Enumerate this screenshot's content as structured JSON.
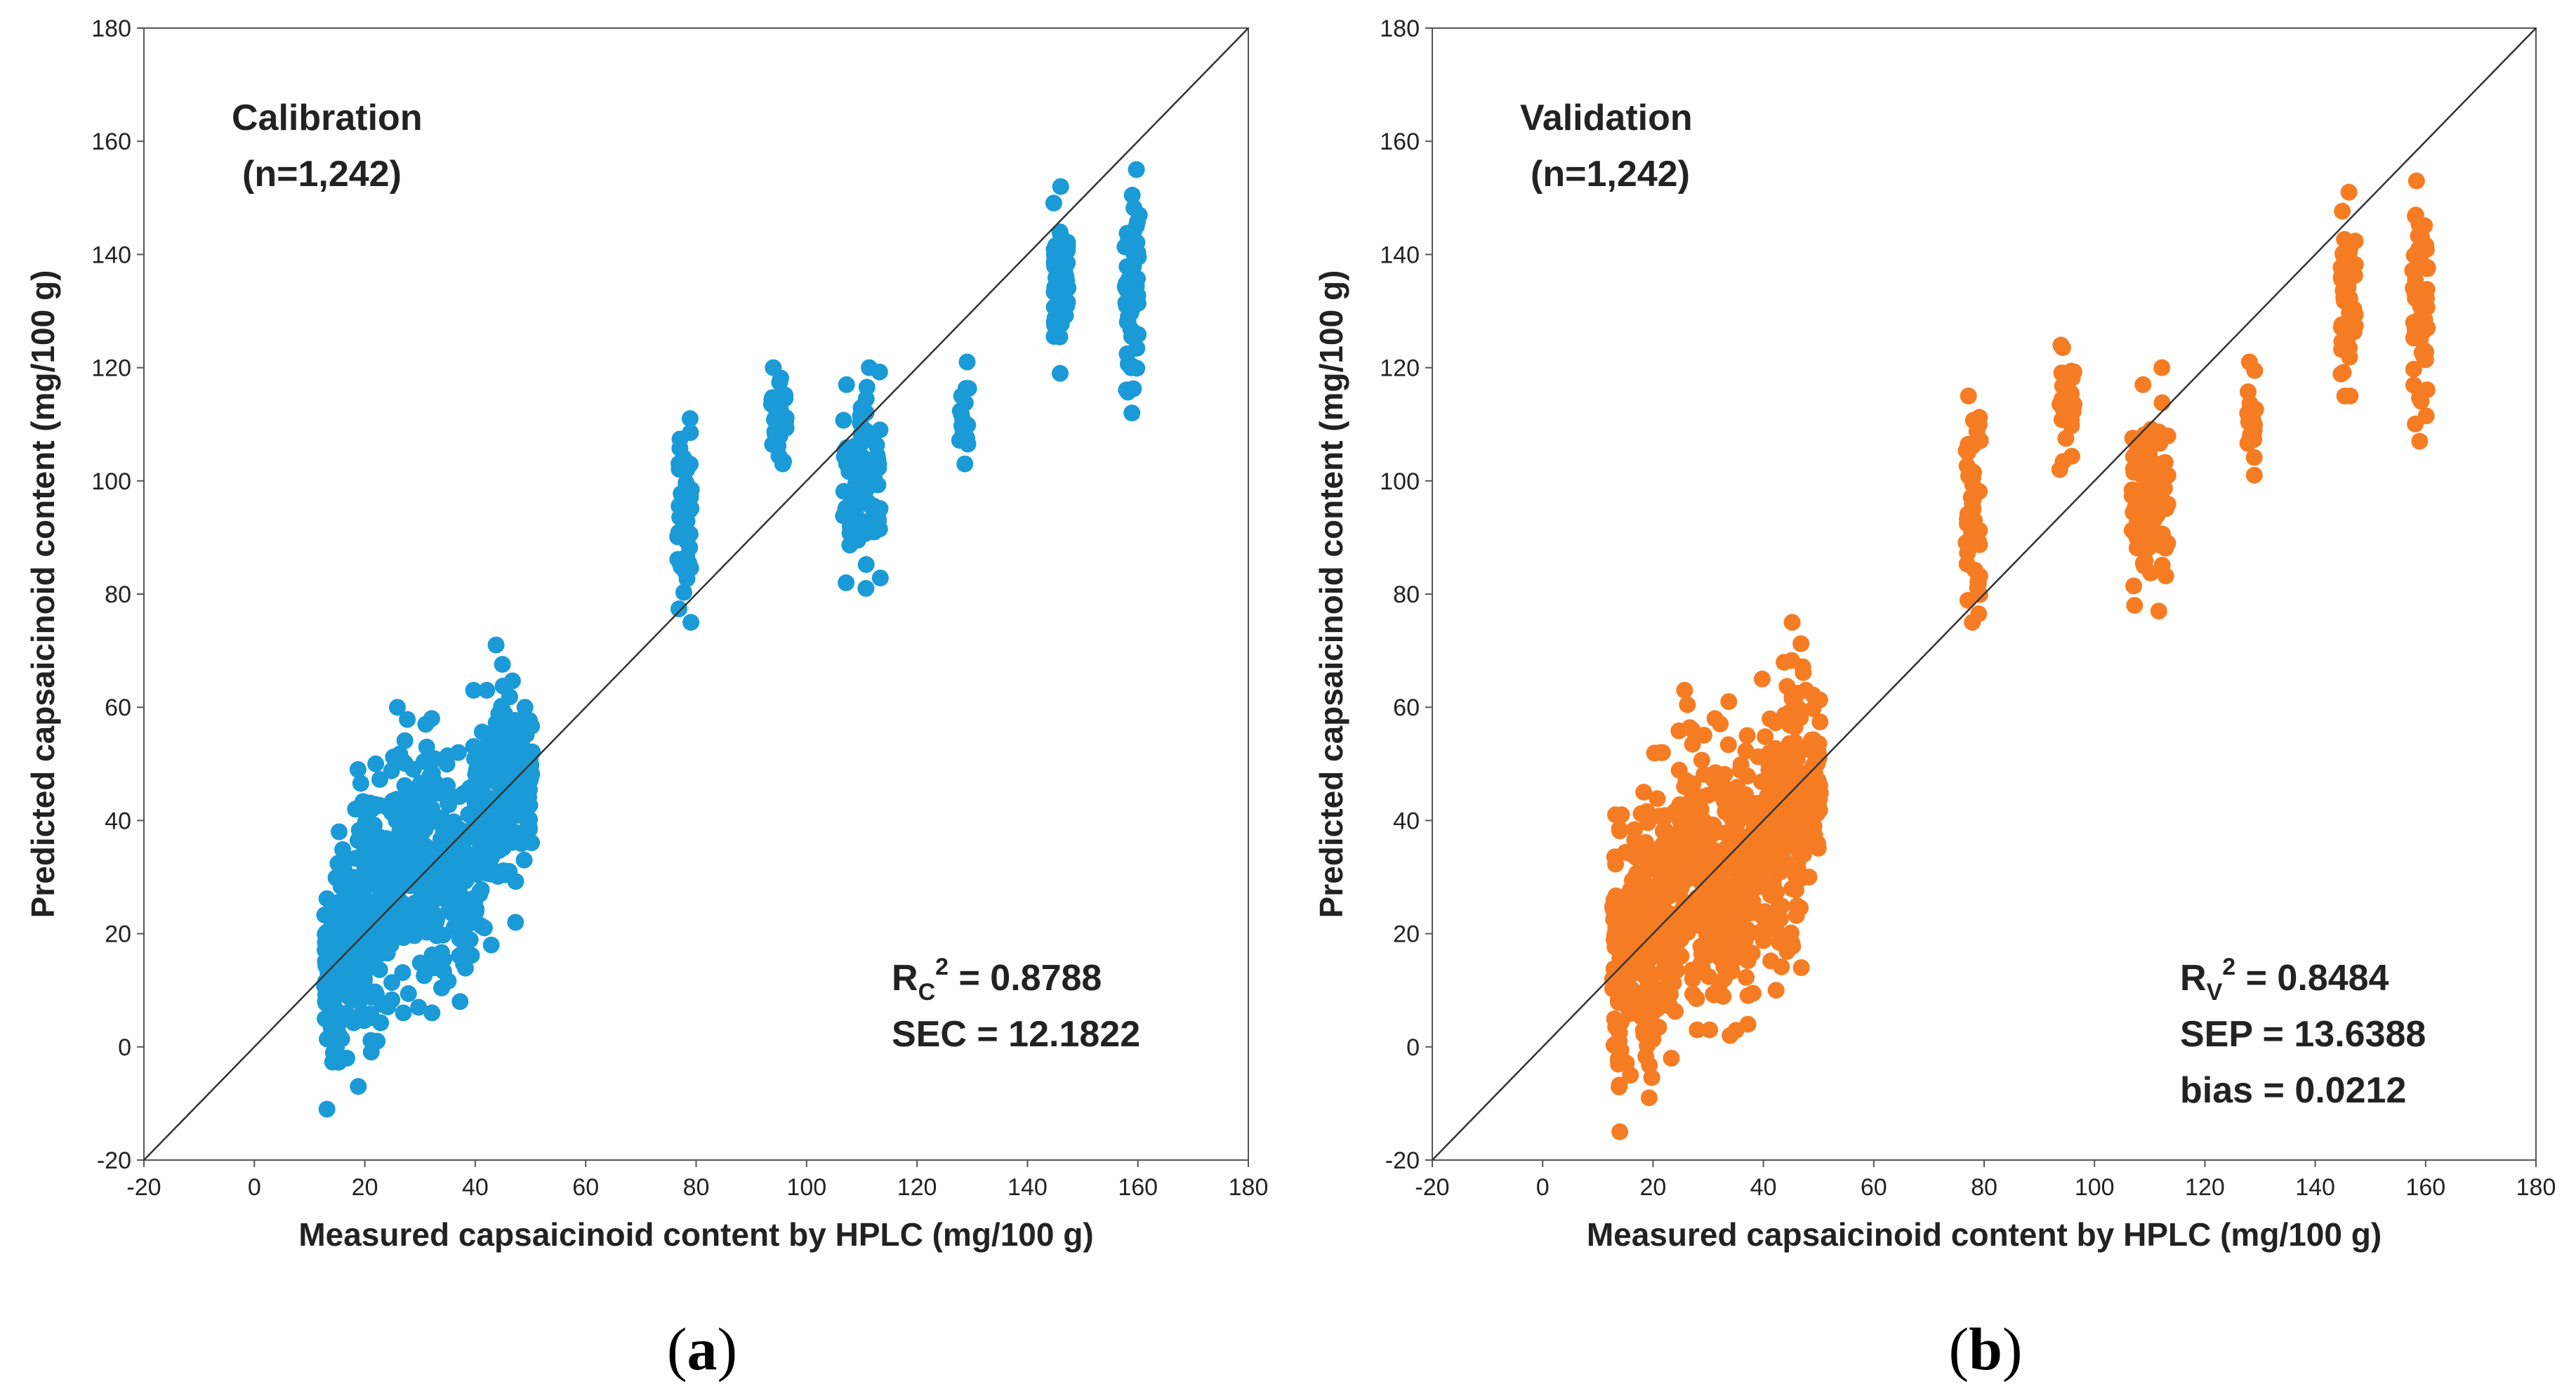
{
  "chart_data": [
    {
      "type": "scatter",
      "panel_label": "a",
      "title": "Calibration",
      "subtitle": "(n=1,242)",
      "xlabel": "Measured capsaicinoid content by HPLC (mg/100 g)",
      "ylabel": "Predicted capsaicinoid content  (mg/100 g)",
      "xlim": [
        -20,
        180
      ],
      "ylim": [
        -20,
        180
      ],
      "xticks": [
        -20,
        0,
        20,
        40,
        60,
        80,
        100,
        120,
        140,
        160,
        180
      ],
      "yticks": [
        -20,
        0,
        20,
        40,
        60,
        80,
        100,
        120,
        140,
        160,
        180
      ],
      "color": "#1a9ad6",
      "reference_line": "1:1",
      "stats": [
        {
          "label": "R",
          "sub": "C",
          "sup": "2",
          "value": " = 0.8788"
        },
        {
          "label": "SEC = 12.1822"
        }
      ],
      "clusters": [
        {
          "xs": [
            13,
            14,
            15
          ],
          "ymin": -11,
          "ymax": 38,
          "n": 75
        },
        {
          "xs": [
            16,
            17,
            18
          ],
          "ymin": -2,
          "ymax": 42,
          "n": 70
        },
        {
          "xs": [
            19,
            20,
            21
          ],
          "ymin": -7,
          "ymax": 49,
          "n": 75
        },
        {
          "xs": [
            22,
            23,
            24
          ],
          "ymin": 1,
          "ymax": 50,
          "n": 70
        },
        {
          "xs": [
            25,
            26,
            27,
            28
          ],
          "ymin": 6,
          "ymax": 60,
          "n": 85
        },
        {
          "xs": [
            29,
            30,
            31
          ],
          "ymin": 7,
          "ymax": 57,
          "n": 70
        },
        {
          "xs": [
            32,
            33,
            34,
            35
          ],
          "ymin": 6,
          "ymax": 58,
          "n": 80
        },
        {
          "xs": [
            36,
            37,
            38,
            39
          ],
          "ymin": 8,
          "ymax": 52,
          "n": 75
        },
        {
          "xs": [
            40,
            41,
            42,
            43
          ],
          "ymin": 18,
          "ymax": 63,
          "n": 85
        },
        {
          "xs": [
            44,
            45,
            46,
            47
          ],
          "ymin": 22,
          "ymax": 71,
          "n": 90
        },
        {
          "xs": [
            48,
            49,
            50
          ],
          "ymin": 33,
          "ymax": 60,
          "n": 60
        },
        {
          "xs": [
            77,
            78,
            79
          ],
          "ymin": 75,
          "ymax": 111,
          "n": 45
        },
        {
          "xs": [
            94,
            95,
            96
          ],
          "ymin": 103,
          "ymax": 120,
          "n": 30
        },
        {
          "xs": [
            107,
            108,
            109
          ],
          "ymin": 82,
          "ymax": 117,
          "n": 45
        },
        {
          "xs": [
            110,
            111,
            112,
            113
          ],
          "ymin": 81,
          "ymax": 120,
          "n": 55
        },
        {
          "xs": [
            128,
            129
          ],
          "ymin": 103,
          "ymax": 121,
          "n": 18
        },
        {
          "xs": [
            145,
            146,
            147
          ],
          "ymin": 119,
          "ymax": 152,
          "n": 50
        },
        {
          "xs": [
            158,
            159,
            160
          ],
          "ymin": 112,
          "ymax": 155,
          "n": 55
        }
      ]
    },
    {
      "type": "scatter",
      "panel_label": "b",
      "title": "Validation",
      "subtitle": "(n=1,242)",
      "xlabel": "Measured capsaicinoid content by HPLC (mg/100 g)",
      "ylabel": "Predicted capsaicinoid content  (mg/100 g)",
      "xlim": [
        -20,
        180
      ],
      "ylim": [
        -20,
        180
      ],
      "xticks": [
        -20,
        0,
        20,
        40,
        60,
        80,
        100,
        120,
        140,
        160,
        180
      ],
      "yticks": [
        -20,
        0,
        20,
        40,
        60,
        80,
        100,
        120,
        140,
        160,
        180
      ],
      "color": "#f57c23",
      "reference_line": "1:1",
      "stats": [
        {
          "label": "R",
          "sub": "V",
          "sup": "2",
          "value": " = 0.8484"
        },
        {
          "label": "SEP = 13.6388"
        },
        {
          "label": "bias = 0.0212"
        }
      ],
      "clusters": [
        {
          "xs": [
            13,
            14,
            15
          ],
          "ymin": -15,
          "ymax": 41,
          "n": 75
        },
        {
          "xs": [
            16,
            17,
            18
          ],
          "ymin": -5,
          "ymax": 45,
          "n": 70
        },
        {
          "xs": [
            19,
            20,
            21
          ],
          "ymin": -9,
          "ymax": 52,
          "n": 75
        },
        {
          "xs": [
            22,
            23,
            24
          ],
          "ymin": -2,
          "ymax": 52,
          "n": 70
        },
        {
          "xs": [
            25,
            26,
            27,
            28
          ],
          "ymin": 3,
          "ymax": 63,
          "n": 85
        },
        {
          "xs": [
            29,
            30,
            31
          ],
          "ymin": 3,
          "ymax": 58,
          "n": 70
        },
        {
          "xs": [
            32,
            33,
            34,
            35
          ],
          "ymin": 2,
          "ymax": 61,
          "n": 80
        },
        {
          "xs": [
            36,
            37,
            38,
            39
          ],
          "ymin": 4,
          "ymax": 55,
          "n": 75
        },
        {
          "xs": [
            40,
            41,
            42,
            43
          ],
          "ymin": 10,
          "ymax": 65,
          "n": 85
        },
        {
          "xs": [
            44,
            45,
            46,
            47
          ],
          "ymin": 14,
          "ymax": 75,
          "n": 90
        },
        {
          "xs": [
            48,
            49,
            50
          ],
          "ymin": 30,
          "ymax": 63,
          "n": 60
        },
        {
          "xs": [
            77,
            78,
            79
          ],
          "ymin": 75,
          "ymax": 115,
          "n": 45
        },
        {
          "xs": [
            94,
            95,
            96
          ],
          "ymin": 102,
          "ymax": 124,
          "n": 30
        },
        {
          "xs": [
            107,
            108,
            109
          ],
          "ymin": 78,
          "ymax": 117,
          "n": 45
        },
        {
          "xs": [
            110,
            111,
            112,
            113
          ],
          "ymin": 77,
          "ymax": 120,
          "n": 55
        },
        {
          "xs": [
            128,
            129
          ],
          "ymin": 101,
          "ymax": 121,
          "n": 18
        },
        {
          "xs": [
            145,
            146,
            147
          ],
          "ymin": 115,
          "ymax": 151,
          "n": 50
        },
        {
          "xs": [
            158,
            159,
            160
          ],
          "ymin": 107,
          "ymax": 153,
          "n": 55
        }
      ]
    }
  ]
}
